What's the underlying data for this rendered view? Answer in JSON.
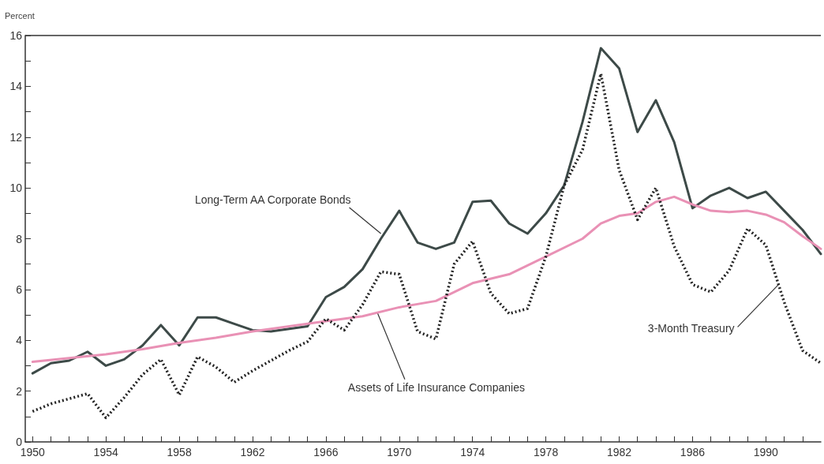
{
  "chart_data": {
    "type": "line",
    "ylabel": "Percent",
    "x": [
      1950,
      1951,
      1952,
      1953,
      1954,
      1955,
      1956,
      1957,
      1958,
      1959,
      1960,
      1961,
      1962,
      1963,
      1964,
      1965,
      1966,
      1967,
      1968,
      1969,
      1970,
      1971,
      1972,
      1973,
      1974,
      1975,
      1976,
      1977,
      1978,
      1979,
      1980,
      1981,
      1982,
      1983,
      1984,
      1985,
      1986,
      1987,
      1988,
      1989,
      1990,
      1991,
      1992,
      1993
    ],
    "series": [
      {
        "color": "#3d4a48",
        "line_style": "solid",
        "values": [
          2.7,
          3.1,
          3.2,
          3.55,
          3.0,
          3.25,
          3.8,
          4.6,
          3.8,
          4.9,
          4.9,
          4.65,
          4.4,
          4.35,
          4.45,
          4.55,
          5.7,
          6.1,
          6.8,
          8.0,
          9.1,
          7.85,
          7.6,
          7.85,
          9.45,
          9.5,
          8.6,
          8.2,
          9.0,
          10.1,
          12.6,
          15.5,
          14.7,
          12.2,
          13.45,
          11.8,
          9.2,
          9.7,
          10.0,
          9.6,
          9.85,
          9.1,
          8.35,
          7.4
        ]
      },
      {
        "color": "#222222",
        "line_style": "dotted",
        "values": [
          1.2,
          1.5,
          1.7,
          1.9,
          0.95,
          1.75,
          2.65,
          3.25,
          1.85,
          3.35,
          2.95,
          2.35,
          2.8,
          3.2,
          3.6,
          3.95,
          4.85,
          4.4,
          5.4,
          6.7,
          6.6,
          4.35,
          4.05,
          7.0,
          7.9,
          5.85,
          5.05,
          5.25,
          7.3,
          10.1,
          11.5,
          14.5,
          10.7,
          8.75,
          10.0,
          7.7,
          6.2,
          5.9,
          6.75,
          8.4,
          7.75,
          5.5,
          3.6,
          3.1
        ]
      },
      {
        "color": "#e991b5",
        "line_style": "solid",
        "x": [
          1950,
          1952,
          1954,
          1956,
          1958,
          1960,
          1962,
          1964,
          1966,
          1968,
          1970,
          1972,
          1974,
          1976,
          1978,
          1980,
          1981,
          1982,
          1983,
          1984,
          1985,
          1986,
          1987,
          1988,
          1989,
          1990,
          1991,
          1992,
          1993
        ],
        "values": [
          3.15,
          3.3,
          3.45,
          3.65,
          3.9,
          4.1,
          4.35,
          4.55,
          4.75,
          4.95,
          5.3,
          5.55,
          6.25,
          6.6,
          7.3,
          8.0,
          8.6,
          8.9,
          9.0,
          9.45,
          9.65,
          9.35,
          9.1,
          9.05,
          9.1,
          8.95,
          8.65,
          8.1,
          7.6
        ]
      }
    ],
    "xlim": [
      1949.6,
      1993
    ],
    "xticks": [
      1950,
      {
        "value": 1951,
        "label": null
      },
      {
        "value": 1952,
        "label": null
      },
      {
        "value": 1953,
        "label": null
      },
      1954,
      {
        "value": 1955,
        "label": null
      },
      {
        "value": 1956,
        "label": null
      },
      {
        "value": 1957,
        "label": null
      },
      1958,
      {
        "value": 1959,
        "label": null
      },
      {
        "value": 1960,
        "label": null
      },
      {
        "value": 1961,
        "label": null
      },
      1962,
      {
        "value": 1963,
        "label": null
      },
      {
        "value": 1964,
        "label": null
      },
      {
        "value": 1965,
        "label": null
      },
      1966,
      {
        "value": 1967,
        "label": null
      },
      {
        "value": 1968,
        "label": null
      },
      {
        "value": 1969,
        "label": null
      },
      1970,
      {
        "value": 1971,
        "label": null
      },
      {
        "value": 1972,
        "label": null
      },
      {
        "value": 1973,
        "label": null
      },
      1974,
      {
        "value": 1975,
        "label": null
      },
      {
        "value": 1976,
        "label": null
      },
      {
        "value": 1977,
        "label": null
      },
      1978,
      {
        "value": 1979,
        "label": null
      },
      {
        "value": 1980,
        "label": null
      },
      {
        "value": 1981,
        "label": null
      },
      1982,
      {
        "value": 1983,
        "label": null
      },
      {
        "value": 1984,
        "label": null
      },
      {
        "value": 1985,
        "label": null
      },
      1986,
      {
        "value": 1987,
        "label": null
      },
      {
        "value": 1988,
        "label": null
      },
      {
        "value": 1989,
        "label": null
      },
      1990,
      {
        "value": 1991,
        "label": null
      },
      {
        "value": 1992,
        "label": null
      }
    ],
    "ylim": [
      0,
      16
    ],
    "yticks": [
      0,
      {
        "value": 1,
        "label": null
      },
      2,
      {
        "value": 3,
        "label": null
      },
      4,
      {
        "value": 5,
        "label": null
      },
      6,
      {
        "value": 7,
        "label": null
      },
      8,
      {
        "value": 9,
        "label": null
      },
      10,
      {
        "value": 11,
        "label": null
      },
      12,
      {
        "value": 13,
        "label": null
      },
      14,
      {
        "value": 15,
        "label": null
      },
      16
    ],
    "marker": "none",
    "annotations": [
      {
        "text": "Long-Term AA Corporate Bonds",
        "x": 1969,
        "y": 8.2
      },
      {
        "text": "Assets of Life Insurance Companies",
        "x": 1968.8,
        "y": 5.1
      },
      {
        "text": "3-Month Treasury",
        "x": 1990.7,
        "y": 6.2
      }
    ]
  }
}
